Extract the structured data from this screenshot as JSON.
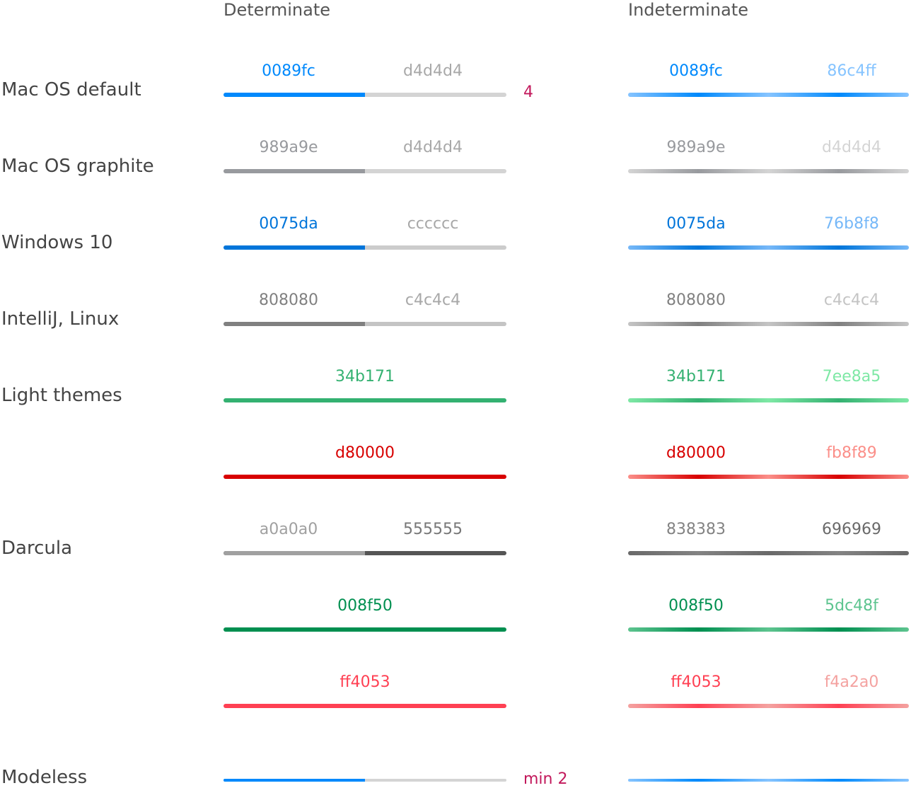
{
  "headers": {
    "determinate": "Determinate",
    "indeterminate": "Indeterminate"
  },
  "labels": {
    "mac_default": "Mac OS default",
    "mac_graphite": "Mac OS graphite",
    "windows10": "Windows 10",
    "intellij_linux": "IntelliJ, Linux",
    "light_themes": "Light themes",
    "darcula": "Darcula",
    "modeless": "Modeless"
  },
  "notes": {
    "height_note": "4",
    "modeless_note": "min 2"
  },
  "rows": [
    {
      "det": {
        "fill": "0089fc",
        "track": "d4d4d4",
        "value": 0.5
      },
      "ind": {
        "a": "0089fc",
        "b": "86c4ff"
      }
    },
    {
      "det": {
        "fill": "989a9e",
        "track": "d4d4d4",
        "value": 0.5
      },
      "ind": {
        "a": "989a9e",
        "b": "d4d4d4"
      }
    },
    {
      "det": {
        "fill": "0075da",
        "track": "cccccc",
        "value": 0.5
      },
      "ind": {
        "a": "0075da",
        "b": "76b8f8"
      }
    },
    {
      "det": {
        "fill": "808080",
        "track": "c4c4c4",
        "value": 0.5
      },
      "ind": {
        "a": "808080",
        "b": "c4c4c4"
      }
    },
    {
      "det": {
        "fill": "34b171",
        "value": 1.0
      },
      "ind": {
        "a": "34b171",
        "b": "7ee8a5"
      }
    },
    {
      "det": {
        "fill": "d80000",
        "value": 1.0
      },
      "ind": {
        "a": "d80000",
        "b": "fb8f89"
      }
    },
    {
      "det": {
        "fill": "a0a0a0",
        "track": "555555",
        "value": 0.5
      },
      "ind": {
        "a": "838383",
        "b": "696969"
      }
    },
    {
      "det": {
        "fill": "008f50",
        "value": 1.0
      },
      "ind": {
        "a": "008f50",
        "b": "5dc48f"
      }
    },
    {
      "det": {
        "fill": "ff4053",
        "value": 1.0
      },
      "ind": {
        "a": "ff4053",
        "b": "f4a2a0"
      }
    }
  ],
  "modeless": {
    "det": {
      "fill_color": "#0089fc",
      "track_color": "#d4d4d4",
      "value": 0.5
    },
    "ind": {
      "a_color": "#0089fc",
      "b_color": "#86c4ff"
    }
  }
}
